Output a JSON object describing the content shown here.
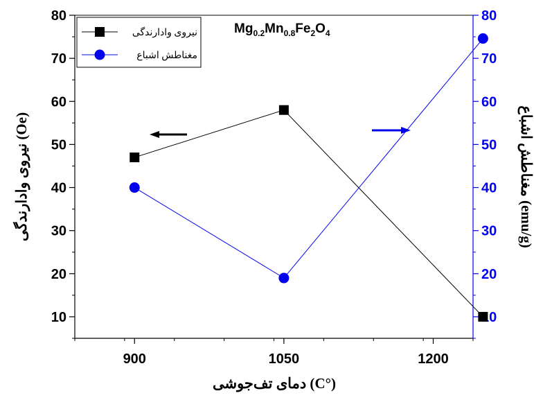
{
  "chart_data": {
    "type": "line",
    "title": "Mg0.2Mn0.8Fe2O4",
    "title_parts": {
      "e1": "Mg",
      "s1": "0.2",
      "e2": "Mn",
      "s2": "0.8",
      "e3": "Fe",
      "s3": "2",
      "e4": "O",
      "s4": "4"
    },
    "xlabel": "(°C) دمای تف‌جوشی",
    "ylabel_left": "نیروی وادارندگی (Oe)",
    "ylabel_right": "مغناطش اشباع (emu/g)",
    "x_ticks": [
      900,
      1050,
      1200
    ],
    "xlim": [
      840,
      1240
    ],
    "ylim_left": [
      5,
      80
    ],
    "ylim_right": [
      5,
      80
    ],
    "y_ticks": [
      10,
      20,
      30,
      40,
      50,
      60,
      70,
      80
    ],
    "grid": false,
    "legend_position": "top-left",
    "series": [
      {
        "name": "نیروی وادارندگی",
        "axis": "left",
        "marker": "square",
        "color": "#000000",
        "x": [
          900,
          1050,
          1250
        ],
        "y": [
          47,
          58,
          10
        ]
      },
      {
        "name": "مغناطش اشباع",
        "axis": "right",
        "marker": "circle",
        "color": "#0000ee",
        "x": [
          900,
          1050,
          1250
        ],
        "y": [
          40,
          19,
          74.6
        ]
      }
    ],
    "axis_colors": {
      "left": "#000000",
      "right": "#0000ee"
    }
  }
}
